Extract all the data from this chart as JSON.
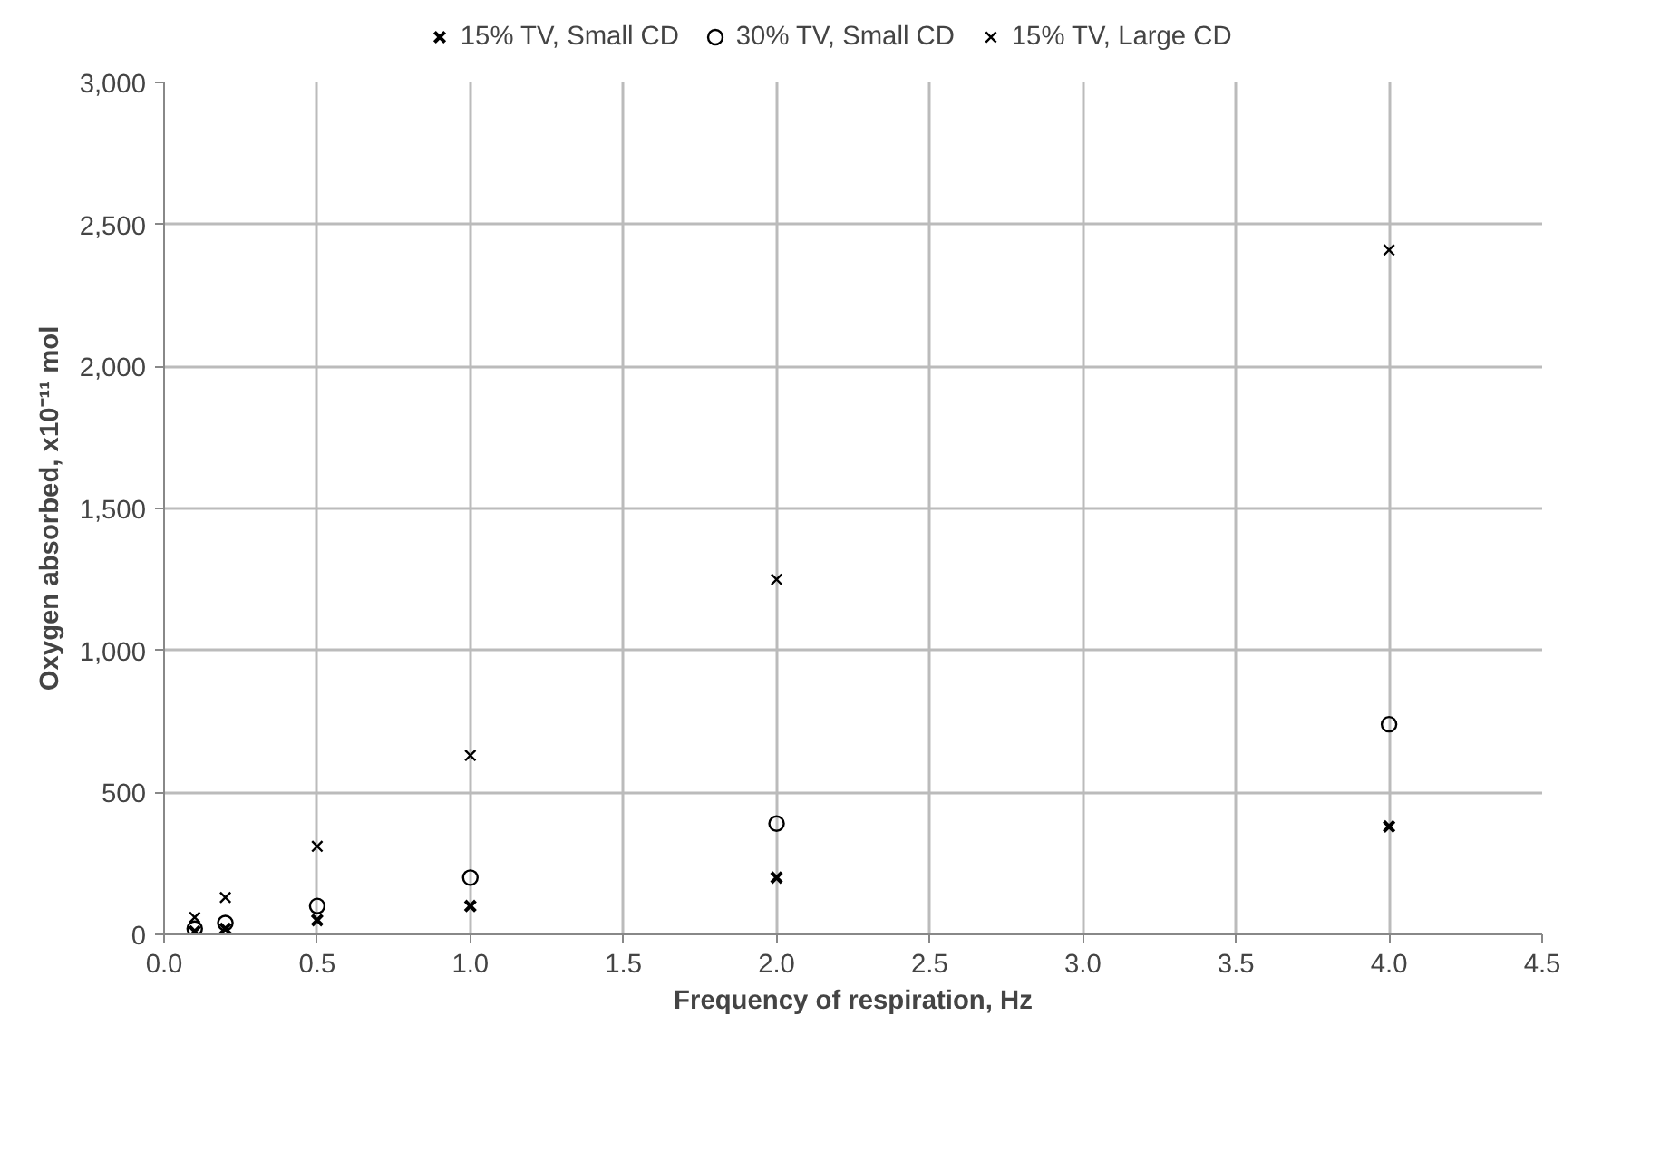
{
  "chart_data": {
    "type": "scatter",
    "xlabel": "Frequency of respiration, Hz",
    "ylabel": "Oxygen absorbed, x10⁻¹¹ mol",
    "x": [
      0.1,
      0.2,
      0.5,
      1.0,
      2.0,
      4.0
    ],
    "series": [
      {
        "name": "15% TV, Small CD",
        "color": "#000000",
        "marker": "cross",
        "values": [
          10,
          20,
          50,
          100,
          200,
          380
        ]
      },
      {
        "name": "30% TV, Small CD",
        "color": "#000000",
        "marker": "circle",
        "values": [
          20,
          40,
          100,
          200,
          390,
          740
        ]
      },
      {
        "name": "15% TV, Large CD",
        "color": "#000000",
        "marker": "cross",
        "values": [
          60,
          130,
          310,
          630,
          1250,
          2410
        ]
      }
    ],
    "xlim": [
      0,
      4.5
    ],
    "xticks": [
      {
        "value": 0,
        "label": "0.0"
      },
      {
        "value": 0.5,
        "label": "0.5"
      },
      {
        "value": 1,
        "label": "1.0"
      },
      {
        "value": 1.5,
        "label": "1.5"
      },
      {
        "value": 2,
        "label": "2.0"
      },
      {
        "value": 2.5,
        "label": "2.5"
      },
      {
        "value": 3,
        "label": "3.0"
      },
      {
        "value": 3.5,
        "label": "3.5"
      },
      {
        "value": 4,
        "label": "4.0"
      },
      {
        "value": 4.5,
        "label": "4.5"
      }
    ],
    "ylim": [
      0,
      3000
    ],
    "yticks": [
      0,
      500,
      {
        "value": 1000,
        "label": "1,000"
      },
      {
        "value": 1500,
        "label": "1,500"
      },
      {
        "value": 2000,
        "label": "2,000"
      },
      {
        "value": 2500,
        "label": "2,500"
      },
      {
        "value": 3000,
        "label": "3,000"
      }
    ],
    "grid": true,
    "legend": "top"
  }
}
